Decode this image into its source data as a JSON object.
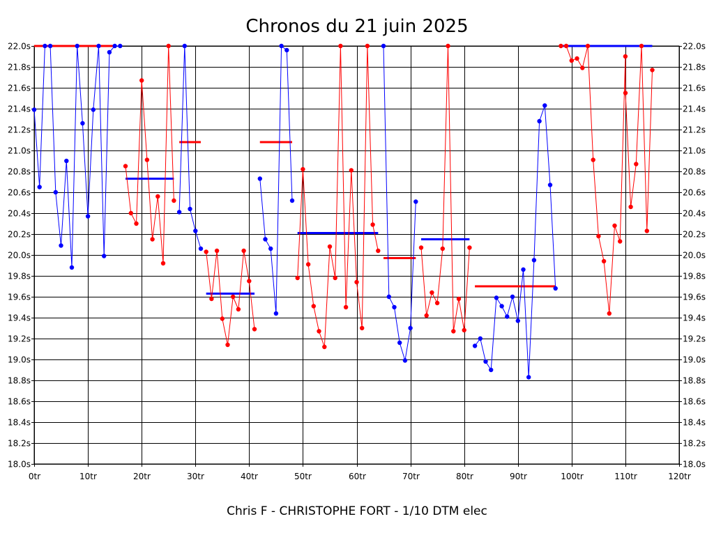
{
  "chart_data": {
    "type": "line",
    "title": "Chronos du 21 juin 2025",
    "footer": "Chris F - CHRISTOPHE FORT - 1/10 DTM elec",
    "xlabel": "",
    "ylabel": "",
    "xlim": [
      0,
      120
    ],
    "ylim": [
      18.0,
      22.0
    ],
    "x_tick_labels": [
      "0tr",
      "10tr",
      "20tr",
      "30tr",
      "40tr",
      "50tr",
      "60tr",
      "70tr",
      "80tr",
      "90tr",
      "100tr",
      "110tr",
      "120tr"
    ],
    "y_tick_labels": [
      "18.0s",
      "18.2s",
      "18.4s",
      "18.6s",
      "18.8s",
      "19.0s",
      "19.2s",
      "19.4s",
      "19.6s",
      "19.8s",
      "20.0s",
      "20.2s",
      "20.4s",
      "20.6s",
      "20.8s",
      "21.0s",
      "21.2s",
      "21.4s",
      "21.6s",
      "21.8s",
      "22.0s"
    ],
    "grid": true,
    "colors": {
      "blue": "#0000ff",
      "red": "#ff0000"
    },
    "series": [
      {
        "color": "blue",
        "points": [
          [
            0,
            21.39
          ],
          [
            1,
            20.65
          ],
          [
            2,
            22.0
          ],
          [
            3,
            22.0
          ],
          [
            4,
            20.6
          ],
          [
            5,
            20.09
          ],
          [
            6,
            20.9
          ],
          [
            7,
            19.88
          ],
          [
            8,
            22.0
          ],
          [
            9,
            21.26
          ],
          [
            10,
            20.37
          ],
          [
            11,
            21.39
          ],
          [
            12,
            22.0
          ],
          [
            13,
            19.99
          ],
          [
            14,
            21.94
          ],
          [
            15,
            22.0
          ],
          [
            16,
            22.0
          ]
        ]
      },
      {
        "color": "red",
        "points": [
          [
            17,
            20.85
          ],
          [
            18,
            20.4
          ],
          [
            19,
            20.3
          ],
          [
            20,
            21.67
          ],
          [
            21,
            20.91
          ],
          [
            22,
            20.15
          ],
          [
            23,
            20.56
          ],
          [
            24,
            19.92
          ],
          [
            25,
            22.0
          ],
          [
            26,
            20.52
          ]
        ]
      },
      {
        "color": "blue",
        "points": [
          [
            27,
            20.41
          ],
          [
            28,
            22.0
          ],
          [
            29,
            20.44
          ],
          [
            30,
            20.23
          ],
          [
            31,
            20.06
          ]
        ]
      },
      {
        "color": "red",
        "points": [
          [
            32,
            20.03
          ],
          [
            33,
            19.58
          ],
          [
            34,
            20.04
          ],
          [
            35,
            19.39
          ],
          [
            36,
            19.14
          ],
          [
            37,
            19.6
          ],
          [
            38,
            19.48
          ],
          [
            39,
            20.04
          ],
          [
            40,
            19.75
          ],
          [
            41,
            19.29
          ]
        ]
      },
      {
        "color": "blue",
        "points": [
          [
            42,
            20.73
          ],
          [
            43,
            20.15
          ],
          [
            44,
            20.06
          ],
          [
            45,
            19.44
          ],
          [
            46,
            22.0
          ],
          [
            47,
            21.96
          ],
          [
            48,
            20.52
          ]
        ]
      },
      {
        "color": "red",
        "points": [
          [
            49,
            19.78
          ],
          [
            50,
            20.82
          ],
          [
            51,
            19.91
          ],
          [
            52,
            19.51
          ],
          [
            53,
            19.27
          ],
          [
            54,
            19.12
          ],
          [
            55,
            20.08
          ],
          [
            56,
            19.78
          ],
          [
            57,
            22.0
          ],
          [
            58,
            19.5
          ],
          [
            59,
            20.81
          ],
          [
            60,
            19.74
          ],
          [
            61,
            19.3
          ],
          [
            62,
            22.0
          ],
          [
            63,
            20.29
          ],
          [
            64,
            20.04
          ]
        ]
      },
      {
        "color": "blue",
        "points": [
          [
            65,
            22.0
          ],
          [
            66,
            19.6
          ],
          [
            67,
            19.5
          ],
          [
            68,
            19.16
          ],
          [
            69,
            18.99
          ],
          [
            70,
            19.3
          ],
          [
            71,
            20.51
          ]
        ]
      },
      {
        "color": "red",
        "points": [
          [
            72,
            20.07
          ],
          [
            73,
            19.42
          ],
          [
            74,
            19.64
          ],
          [
            75,
            19.54
          ],
          [
            76,
            20.06
          ],
          [
            77,
            22.0
          ],
          [
            78,
            19.27
          ],
          [
            79,
            19.58
          ],
          [
            80,
            19.28
          ],
          [
            81,
            20.07
          ]
        ]
      },
      {
        "color": "blue",
        "points": [
          [
            82,
            19.13
          ],
          [
            83,
            19.2
          ],
          [
            84,
            18.98
          ],
          [
            85,
            18.9
          ],
          [
            86,
            19.59
          ],
          [
            87,
            19.51
          ],
          [
            88,
            19.41
          ],
          [
            89,
            19.6
          ],
          [
            90,
            19.37
          ],
          [
            91,
            19.86
          ],
          [
            92,
            18.83
          ],
          [
            93,
            19.95
          ],
          [
            94,
            21.28
          ],
          [
            95,
            21.43
          ],
          [
            96,
            20.67
          ],
          [
            97,
            19.68
          ]
        ]
      },
      {
        "color": "red",
        "points": [
          [
            98,
            22.0
          ],
          [
            99,
            22.0
          ],
          [
            100,
            21.86
          ],
          [
            101,
            21.88
          ],
          [
            102,
            21.79
          ],
          [
            103,
            22.0
          ],
          [
            104,
            20.91
          ],
          [
            105,
            20.18
          ],
          [
            106,
            19.94
          ],
          [
            107,
            19.44
          ],
          [
            108,
            20.28
          ],
          [
            109,
            20.13
          ],
          [
            110,
            21.9
          ],
          [
            110.01,
            21.55
          ],
          [
            111,
            20.46
          ],
          [
            112,
            20.87
          ],
          [
            113,
            22.0
          ],
          [
            114,
            20.23
          ],
          [
            115,
            21.77
          ]
        ]
      }
    ],
    "mean_lines": [
      {
        "color": "red",
        "x": [
          0,
          15
        ],
        "y": 22.0
      },
      {
        "color": "blue",
        "x": [
          17,
          26
        ],
        "y": 20.73
      },
      {
        "color": "red",
        "x": [
          27,
          31
        ],
        "y": 21.08
      },
      {
        "color": "blue",
        "x": [
          32,
          41
        ],
        "y": 19.63
      },
      {
        "color": "red",
        "x": [
          42,
          48
        ],
        "y": 21.08
      },
      {
        "color": "blue",
        "x": [
          49,
          64
        ],
        "y": 20.21
      },
      {
        "color": "red",
        "x": [
          65,
          71
        ],
        "y": 19.97
      },
      {
        "color": "blue",
        "x": [
          72,
          81
        ],
        "y": 20.15
      },
      {
        "color": "red",
        "x": [
          82,
          97
        ],
        "y": 19.7
      },
      {
        "color": "blue",
        "x": [
          98,
          115
        ],
        "y": 22.0
      }
    ]
  }
}
